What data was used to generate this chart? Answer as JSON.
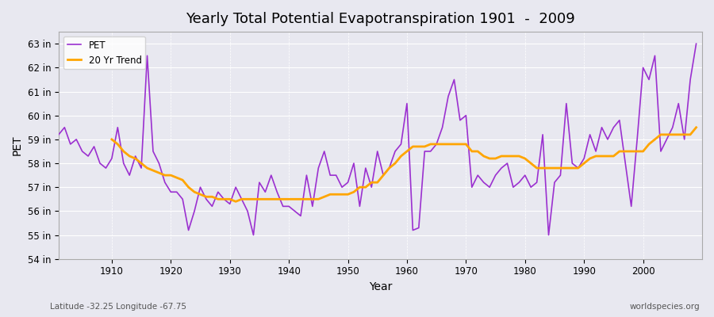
{
  "title": "Yearly Total Potential Evapotranspiration 1901  -  2009",
  "xlabel": "Year",
  "ylabel": "PET",
  "subtitle_left": "Latitude -32.25 Longitude -67.75",
  "watermark": "worldspecies.org",
  "bg_color": "#e8e8f0",
  "plot_bg_color": "#e8e8f0",
  "pet_color": "#9b30d0",
  "trend_color": "#ffa500",
  "ylim": [
    54,
    63.5
  ],
  "yticks": [
    54,
    55,
    56,
    57,
    58,
    59,
    60,
    61,
    62,
    63
  ],
  "ytick_labels": [
    "54 in",
    "55 in",
    "56 in",
    "57 in",
    "58 in",
    "59 in",
    "60 in",
    "61 in",
    "62 in",
    "63 in"
  ],
  "xticks": [
    1910,
    1920,
    1930,
    1940,
    1950,
    1960,
    1970,
    1980,
    1990,
    2000
  ],
  "years": [
    1901,
    1902,
    1903,
    1904,
    1905,
    1906,
    1907,
    1908,
    1909,
    1910,
    1911,
    1912,
    1913,
    1914,
    1915,
    1916,
    1917,
    1918,
    1919,
    1920,
    1921,
    1922,
    1923,
    1924,
    1925,
    1926,
    1927,
    1928,
    1929,
    1930,
    1931,
    1932,
    1933,
    1934,
    1935,
    1936,
    1937,
    1938,
    1939,
    1940,
    1941,
    1942,
    1943,
    1944,
    1945,
    1946,
    1947,
    1948,
    1949,
    1950,
    1951,
    1952,
    1953,
    1954,
    1955,
    1956,
    1957,
    1958,
    1959,
    1960,
    1961,
    1962,
    1963,
    1964,
    1965,
    1966,
    1967,
    1968,
    1969,
    1970,
    1971,
    1972,
    1973,
    1974,
    1975,
    1976,
    1977,
    1978,
    1979,
    1980,
    1981,
    1982,
    1983,
    1984,
    1985,
    1986,
    1987,
    1988,
    1989,
    1990,
    1991,
    1992,
    1993,
    1994,
    1995,
    1996,
    1997,
    1998,
    1999,
    2000,
    2001,
    2002,
    2003,
    2004,
    2005,
    2006,
    2007,
    2008,
    2009
  ],
  "pet_values": [
    59.2,
    59.5,
    58.8,
    59.0,
    58.5,
    58.3,
    58.7,
    58.0,
    57.8,
    58.2,
    59.5,
    58.0,
    57.5,
    58.3,
    57.8,
    62.5,
    58.5,
    58.0,
    57.2,
    56.8,
    56.8,
    56.5,
    55.2,
    56.0,
    57.0,
    56.5,
    56.2,
    56.8,
    56.5,
    56.3,
    57.0,
    56.5,
    56.0,
    55.0,
    57.2,
    56.8,
    57.5,
    56.8,
    56.2,
    56.2,
    56.0,
    55.8,
    57.5,
    56.2,
    57.8,
    58.5,
    57.5,
    57.5,
    57.0,
    57.2,
    58.0,
    56.2,
    57.8,
    57.0,
    58.5,
    57.5,
    57.8,
    58.5,
    58.8,
    60.5,
    55.2,
    55.3,
    58.5,
    58.5,
    58.8,
    59.5,
    60.8,
    61.5,
    59.8,
    60.0,
    57.0,
    57.5,
    57.2,
    57.0,
    57.5,
    57.8,
    58.0,
    57.0,
    57.2,
    57.5,
    57.0,
    57.2,
    59.2,
    55.0,
    57.2,
    57.5,
    60.5,
    58.0,
    57.8,
    58.2,
    59.2,
    58.5,
    59.5,
    59.0,
    59.5,
    59.8,
    58.0,
    56.2,
    59.0,
    62.0,
    61.5,
    62.5,
    58.5,
    59.0,
    59.5,
    60.5,
    59.0,
    61.5,
    63.0
  ],
  "trend_years": [
    1910,
    1911,
    1912,
    1913,
    1914,
    1915,
    1916,
    1917,
    1918,
    1919,
    1920,
    1921,
    1922,
    1923,
    1924,
    1925,
    1926,
    1927,
    1928,
    1929,
    1930,
    1931,
    1932,
    1933,
    1934,
    1935,
    1936,
    1937,
    1938,
    1939,
    1940,
    1941,
    1942,
    1943,
    1944,
    1945,
    1946,
    1947,
    1948,
    1949,
    1950,
    1951,
    1952,
    1953,
    1954,
    1955,
    1956,
    1957,
    1958,
    1959,
    1960,
    1961,
    1962,
    1963,
    1964,
    1965,
    1966,
    1967,
    1968,
    1969,
    1970,
    1971,
    1972,
    1973,
    1974,
    1975,
    1976,
    1977,
    1978,
    1979,
    1980,
    1981,
    1982,
    1983,
    1984,
    1985,
    1986,
    1987,
    1988,
    1989,
    1990,
    1991,
    1992,
    1993,
    1994,
    1995,
    1996,
    1997,
    1998,
    1999,
    2000,
    2001,
    2002,
    2003,
    2004,
    2005,
    2006,
    2007,
    2008,
    2009
  ],
  "trend_values": [
    59.0,
    58.8,
    58.5,
    58.3,
    58.2,
    58.0,
    57.8,
    57.7,
    57.6,
    57.5,
    57.5,
    57.4,
    57.3,
    57.0,
    56.8,
    56.7,
    56.6,
    56.6,
    56.5,
    56.5,
    56.5,
    56.4,
    56.5,
    56.5,
    56.5,
    56.5,
    56.5,
    56.5,
    56.5,
    56.5,
    56.5,
    56.5,
    56.5,
    56.5,
    56.5,
    56.5,
    56.6,
    56.7,
    56.7,
    56.7,
    56.7,
    56.8,
    57.0,
    57.0,
    57.2,
    57.2,
    57.5,
    57.8,
    58.0,
    58.3,
    58.5,
    58.7,
    58.7,
    58.7,
    58.8,
    58.8,
    58.8,
    58.8,
    58.8,
    58.8,
    58.8,
    58.5,
    58.5,
    58.3,
    58.2,
    58.2,
    58.3,
    58.3,
    58.3,
    58.3,
    58.2,
    58.0,
    57.8,
    57.8,
    57.8,
    57.8,
    57.8,
    57.8,
    57.8,
    57.8,
    58.0,
    58.2,
    58.3,
    58.3,
    58.3,
    58.3,
    58.5,
    58.5,
    58.5,
    58.5,
    58.5,
    58.8,
    59.0,
    59.2,
    59.2,
    59.2,
    59.2,
    59.2,
    59.2,
    59.5
  ]
}
